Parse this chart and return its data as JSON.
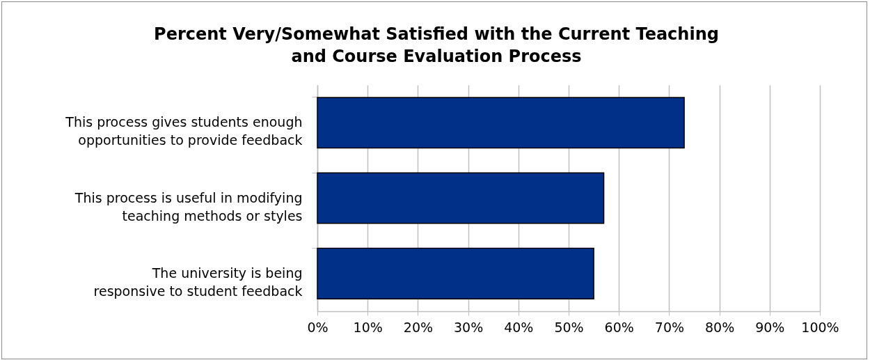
{
  "chart_data": {
    "type": "bar",
    "orientation": "horizontal",
    "title": "Percent Very/Somewhat Satisfied with the Current Teaching and Course Evaluation Process",
    "categories": [
      "This process gives students enough opportunities to provide feedback",
      "This process is useful in modifying teaching methods or styles",
      "The university is being responsive to student feedback"
    ],
    "values": [
      73,
      57,
      55
    ],
    "color": "#003087",
    "xlim": [
      0,
      100
    ],
    "xticks": [
      {
        "value": 0,
        "label": "0%"
      },
      {
        "value": 10,
        "label": "10%"
      },
      {
        "value": 20,
        "label": "20%"
      },
      {
        "value": 30,
        "label": "30%"
      },
      {
        "value": 40,
        "label": "40%"
      },
      {
        "value": 50,
        "label": "50%"
      },
      {
        "value": 60,
        "label": "60%"
      },
      {
        "value": 70,
        "label": "70%"
      },
      {
        "value": 80,
        "label": "80%"
      },
      {
        "value": 90,
        "label": "90%"
      },
      {
        "value": 100,
        "label": "100%"
      }
    ],
    "grid": "x"
  }
}
